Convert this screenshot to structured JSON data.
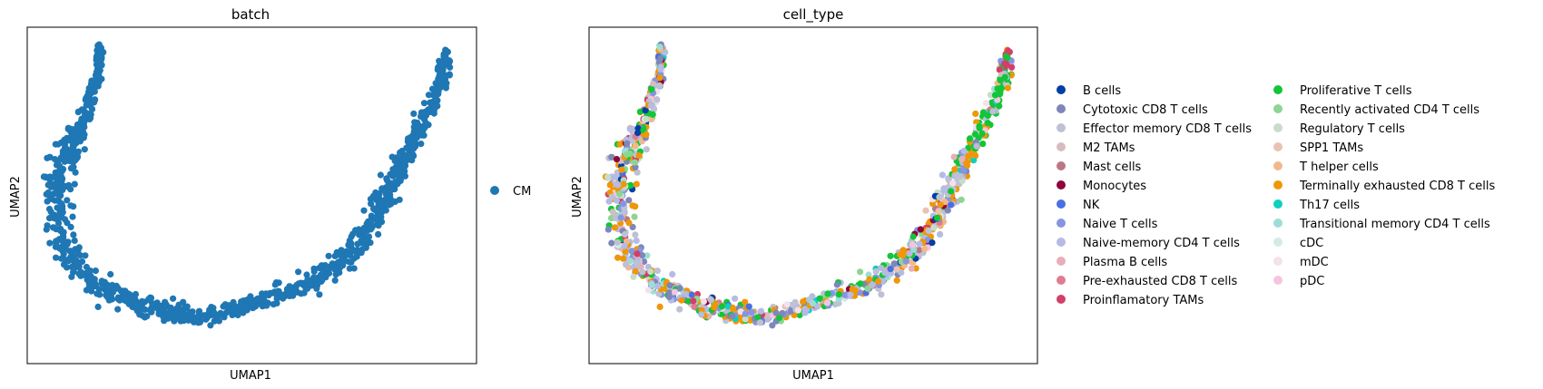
{
  "chart_data": [
    {
      "type": "scatter",
      "title": "batch",
      "xlabel": "UMAP1",
      "ylabel": "UMAP2",
      "xlim": [
        0,
        1
      ],
      "ylim": [
        0,
        1
      ],
      "grid": false,
      "legend_position": "right",
      "series": [
        {
          "name": "CM",
          "color": "#1f77b4"
        }
      ]
    },
    {
      "type": "scatter",
      "title": "cell_type",
      "xlabel": "UMAP1",
      "ylabel": "UMAP2",
      "xlim": [
        0,
        1
      ],
      "ylim": [
        0,
        1
      ],
      "grid": false,
      "legend_position": "right",
      "series": [
        {
          "name": "B cells",
          "color": "#023fa5"
        },
        {
          "name": "Cytotoxic CD8 T cells",
          "color": "#7d87b9"
        },
        {
          "name": "Effector memory CD8 T cells",
          "color": "#bec1d4"
        },
        {
          "name": "M2 TAMs",
          "color": "#d6bcc0"
        },
        {
          "name": "Mast cells",
          "color": "#bb7784"
        },
        {
          "name": "Monocytes",
          "color": "#8e063b"
        },
        {
          "name": "NK",
          "color": "#4a6fe3"
        },
        {
          "name": "Naive T cells",
          "color": "#8595e1"
        },
        {
          "name": "Naive-memory CD4 T cells",
          "color": "#b5bbe3"
        },
        {
          "name": "Plasma B cells",
          "color": "#e6afb9"
        },
        {
          "name": "Pre-exhausted CD8 T cells",
          "color": "#e07b91"
        },
        {
          "name": "Proinflamatory TAMs",
          "color": "#d33f6a"
        },
        {
          "name": "Proliferative T cells",
          "color": "#11c638"
        },
        {
          "name": "Recently activated CD4 T cells",
          "color": "#8dd593"
        },
        {
          "name": "Regulatory T cells",
          "color": "#c6dec7"
        },
        {
          "name": "SPP1 TAMs",
          "color": "#eac2b4"
        },
        {
          "name": "T helper cells",
          "color": "#f0b98d"
        },
        {
          "name": "Terminally exhausted CD8 T cells",
          "color": "#ef9708"
        },
        {
          "name": "Th17 cells",
          "color": "#0fcfc0"
        },
        {
          "name": "Transitional memory CD4 T cells",
          "color": "#9cded6"
        },
        {
          "name": "cDC",
          "color": "#d5eae7"
        },
        {
          "name": "mDC",
          "color": "#f3e1eb"
        },
        {
          "name": "pDC",
          "color": "#f6c4e1"
        }
      ]
    }
  ]
}
